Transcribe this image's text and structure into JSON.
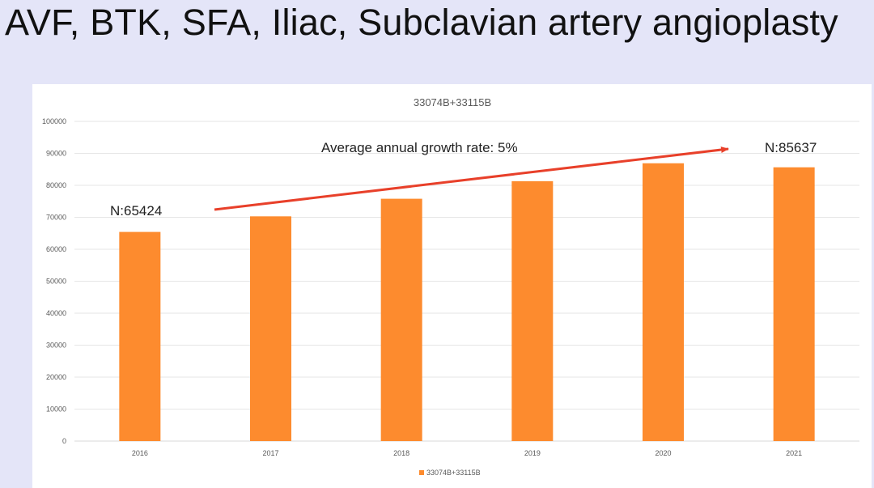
{
  "slide": {
    "title": "AVF, BTK, SFA, Iliac, Subclavian artery angioplasty"
  },
  "chart_data": {
    "type": "bar",
    "title": "33074B+33115B",
    "categories": [
      "2016",
      "2017",
      "2018",
      "2019",
      "2020",
      "2021"
    ],
    "series": [
      {
        "name": "33074B+33115B",
        "values": [
          65424,
          70300,
          75800,
          81300,
          86900,
          85637
        ],
        "color": "#fd8b2e"
      }
    ],
    "ylim": [
      0,
      100000
    ],
    "yticks": [
      0,
      10000,
      20000,
      30000,
      40000,
      50000,
      60000,
      70000,
      80000,
      90000,
      100000
    ],
    "grid": true,
    "legend_position": "bottom",
    "annotations": {
      "growth_label": "Average annual growth rate: 5%",
      "start_label": "N:65424",
      "end_label": "N:85637",
      "arrow_color": "#e8402a"
    }
  }
}
